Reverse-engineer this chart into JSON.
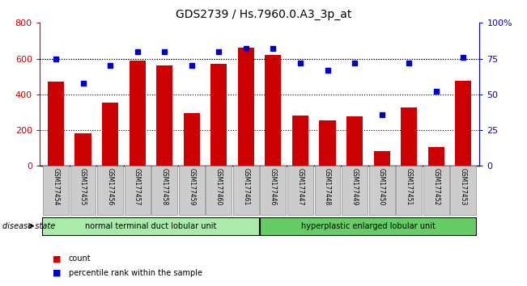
{
  "title": "GDS2739 / Hs.7960.0.A3_3p_at",
  "samples": [
    "GSM177454",
    "GSM177455",
    "GSM177456",
    "GSM177457",
    "GSM177458",
    "GSM177459",
    "GSM177460",
    "GSM177461",
    "GSM177446",
    "GSM177447",
    "GSM177448",
    "GSM177449",
    "GSM177450",
    "GSM177451",
    "GSM177452",
    "GSM177453"
  ],
  "counts": [
    470,
    180,
    355,
    590,
    560,
    295,
    570,
    660,
    620,
    280,
    255,
    275,
    85,
    325,
    105,
    475
  ],
  "percentiles": [
    75,
    58,
    70,
    80,
    80,
    70,
    80,
    82,
    82,
    72,
    67,
    72,
    36,
    72,
    52,
    76
  ],
  "group1_label": "normal terminal duct lobular unit",
  "group1_count": 8,
  "group2_label": "hyperplastic enlarged lobular unit",
  "group2_count": 8,
  "disease_state_label": "disease state",
  "bar_color": "#cc0000",
  "dot_color": "#0000cc",
  "left_ylim": [
    0,
    800
  ],
  "right_ylim": [
    0,
    100
  ],
  "left_yticks": [
    0,
    200,
    400,
    600,
    800
  ],
  "right_yticks": [
    0,
    25,
    50,
    75,
    100
  ],
  "right_yticklabels": [
    "0",
    "25",
    "50",
    "75",
    "100%"
  ],
  "group1_bg": "#aaeaaa",
  "group2_bg": "#66cc66",
  "tick_bg": "#cccccc",
  "legend_count_label": "count",
  "legend_pct_label": "percentile rank within the sample"
}
